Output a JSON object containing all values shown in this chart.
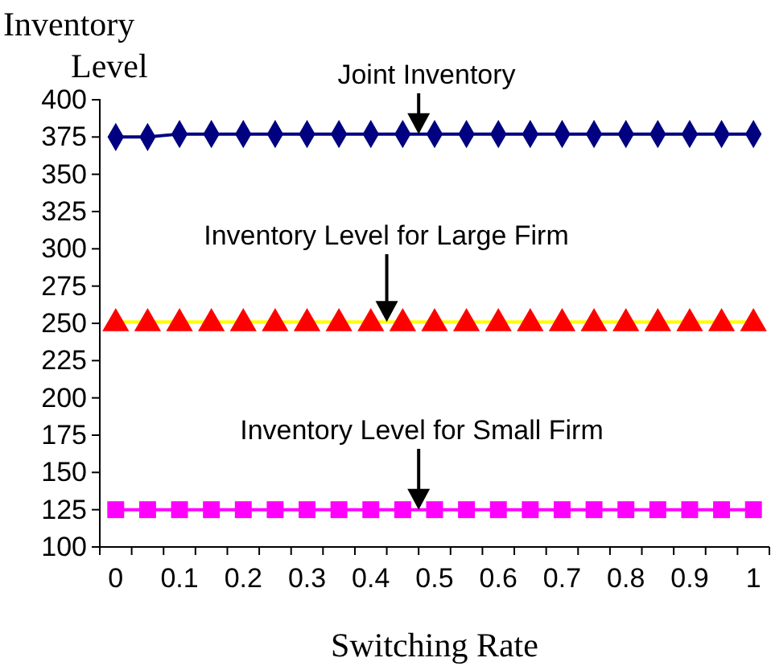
{
  "chart_data": {
    "type": "line",
    "ylabel": "Inventory Level",
    "xlabel": "Switching Rate",
    "categories": [
      "0",
      null,
      "0.1",
      null,
      "0.2",
      null,
      "0.3",
      null,
      "0.4",
      null,
      "0.5",
      null,
      "0.6",
      null,
      "0.7",
      null,
      "0.8",
      null,
      "0.9",
      null,
      "1"
    ],
    "series": [
      {
        "color": "#000080",
        "marker": "diamond",
        "values": [
          375,
          375,
          377,
          377,
          377,
          377,
          377,
          377,
          377,
          377,
          377,
          377,
          377,
          377,
          377,
          377,
          377,
          377,
          377,
          377,
          377
        ]
      },
      {
        "color": "#ff0000",
        "marker": "triangle",
        "values": [
          251,
          251,
          251,
          251,
          251,
          251,
          251,
          251,
          251,
          251,
          251,
          251,
          251,
          251,
          251,
          251,
          251,
          251,
          251,
          251,
          251
        ]
      },
      {
        "color": "#ff00ff",
        "marker": "square",
        "values": [
          125,
          125,
          125,
          125,
          125,
          125,
          125,
          125,
          125,
          125,
          125,
          125,
          125,
          125,
          125,
          125,
          125,
          125,
          125,
          125,
          125
        ]
      }
    ],
    "ylim": [
      100,
      400
    ],
    "yticks": [
      100,
      125,
      150,
      175,
      200,
      225,
      250,
      275,
      300,
      325,
      350,
      375,
      400
    ],
    "annotations": [
      "Joint Inventory",
      "Inventory Level for Large Firm",
      "Inventory Level for Small Firm"
    ],
    "grid": false
  }
}
